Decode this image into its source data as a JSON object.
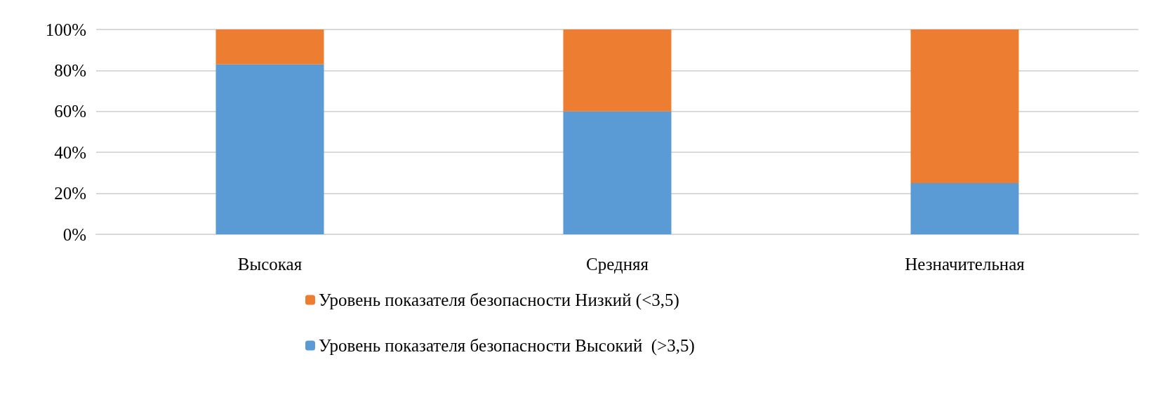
{
  "chart_data": {
    "type": "bar",
    "stacked": true,
    "categories": [
      "Высокая",
      "Средняя",
      "Незначительная"
    ],
    "series": [
      {
        "name": "Уровень показателя безопасности Высокий  (>3,5)",
        "color": "#5b9bd5",
        "values": [
          83,
          60,
          25
        ]
      },
      {
        "name": "Уровень показателя безопасности Низкий (<3,5)",
        "color": "#ed7d31",
        "values": [
          17,
          40,
          75
        ]
      }
    ],
    "ylim": [
      0,
      100
    ],
    "yticks": [
      {
        "value": 0,
        "label": "0%"
      },
      {
        "value": 20,
        "label": "20%"
      },
      {
        "value": 40,
        "label": "40%"
      },
      {
        "value": 60,
        "label": "60%"
      },
      {
        "value": 80,
        "label": "80%"
      },
      {
        "value": 100,
        "label": "100%"
      }
    ],
    "grid": "y",
    "legend": "bottom"
  }
}
